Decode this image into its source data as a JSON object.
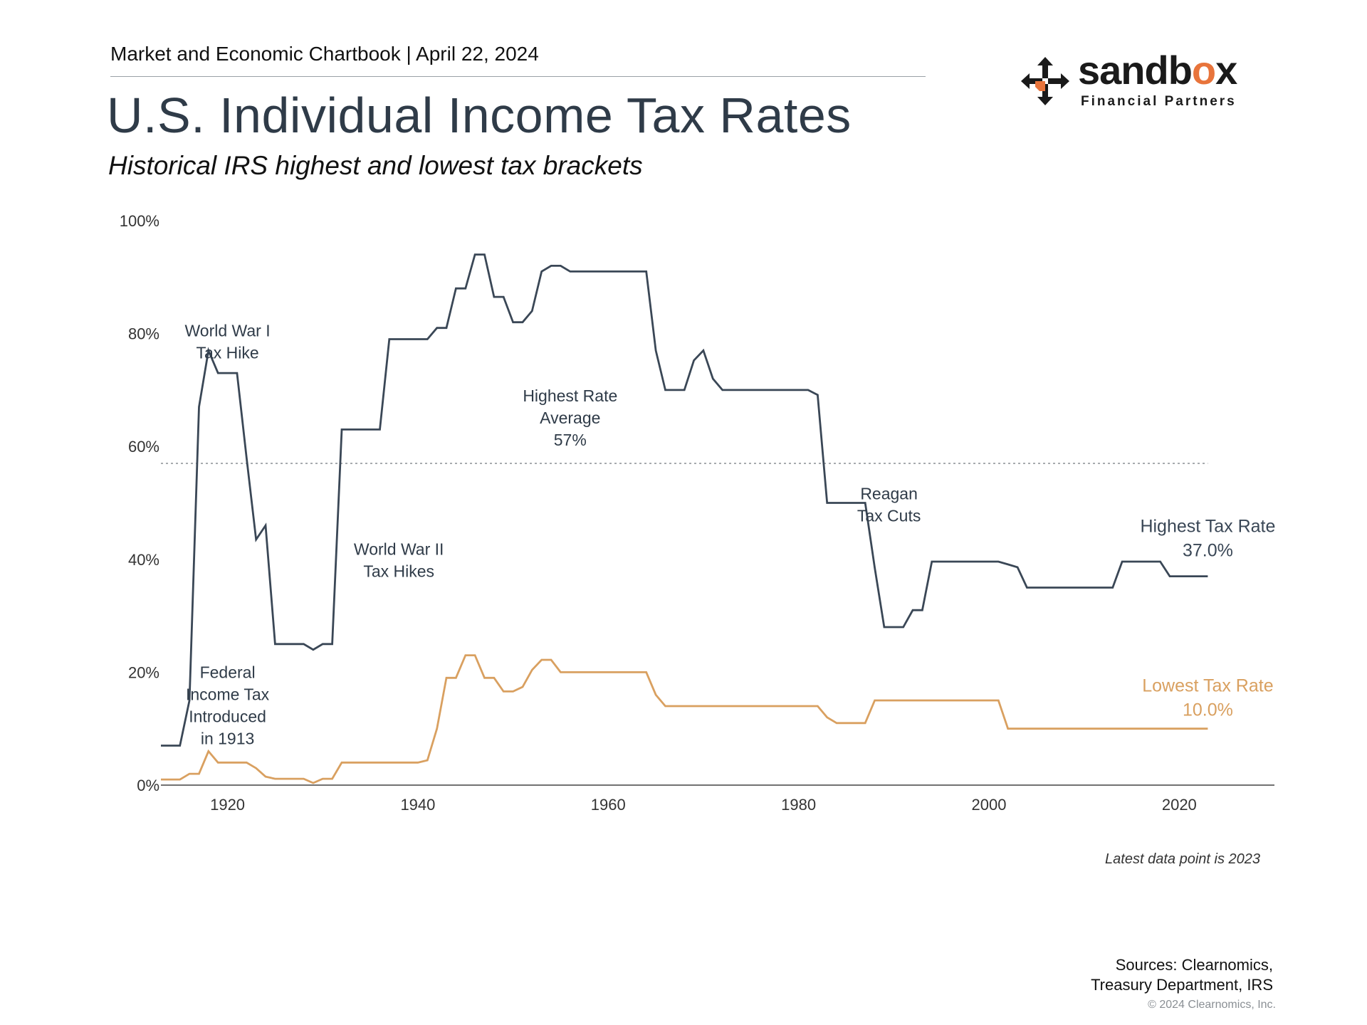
{
  "header": {
    "publication": "Market and Economic Chartbook | April 22, 2024",
    "title": "U.S. Individual Income Tax Rates",
    "subtitle": "Historical IRS highest and lowest tax brackets"
  },
  "logo": {
    "word_main": "sandb",
    "word_accent": "o",
    "word_end": "x",
    "tagline": "Financial Partners",
    "icon": "arrows-cross-icon"
  },
  "footer": {
    "note": "Latest data point is 2023",
    "sources_line1": "Sources: Clearnomics,",
    "sources_line2": "Treasury Department, IRS",
    "copyright": "© 2024 Clearnomics, Inc."
  },
  "colors": {
    "highest": "#3a4756",
    "lowest": "#d9a060",
    "axis": "#444444",
    "average_line": "#8a8f94",
    "text": "#2f3b48",
    "accent": "#e8743b"
  },
  "chart_data": {
    "type": "line",
    "title": "U.S. Individual Income Tax Rates",
    "subtitle": "Historical IRS highest and lowest tax brackets",
    "xlabel": "",
    "ylabel": "",
    "xlim": [
      1913,
      2030
    ],
    "ylim": [
      0,
      100
    ],
    "x_ticks": [
      1920,
      1940,
      1960,
      1980,
      2000,
      2020
    ],
    "y_ticks": [
      0,
      20,
      40,
      60,
      80,
      100
    ],
    "y_tick_labels": [
      "0%",
      "20%",
      "40%",
      "60%",
      "80%",
      "100%"
    ],
    "grid": false,
    "average_line": {
      "value": 57,
      "style": "dotted"
    },
    "series": [
      {
        "name": "Highest Tax Rate",
        "end_label": "37.0%",
        "points": [
          [
            1913,
            7
          ],
          [
            1915,
            7
          ],
          [
            1916,
            15
          ],
          [
            1917,
            67
          ],
          [
            1918,
            77
          ],
          [
            1919,
            73
          ],
          [
            1921,
            73
          ],
          [
            1922,
            58
          ],
          [
            1923,
            43.5
          ],
          [
            1924,
            46
          ],
          [
            1925,
            25
          ],
          [
            1928,
            25
          ],
          [
            1929,
            24
          ],
          [
            1930,
            25
          ],
          [
            1931,
            25
          ],
          [
            1932,
            63
          ],
          [
            1936,
            63
          ],
          [
            1937,
            79
          ],
          [
            1941,
            79
          ],
          [
            1942,
            81
          ],
          [
            1943,
            81
          ],
          [
            1944,
            88
          ],
          [
            1945,
            88
          ],
          [
            1946,
            94
          ],
          [
            1947,
            94
          ],
          [
            1948,
            86.5
          ],
          [
            1949,
            86.5
          ],
          [
            1950,
            82
          ],
          [
            1951,
            82
          ],
          [
            1952,
            84
          ],
          [
            1953,
            91
          ],
          [
            1954,
            92
          ],
          [
            1955,
            92
          ],
          [
            1956,
            91
          ],
          [
            1964,
            91
          ],
          [
            1965,
            77
          ],
          [
            1966,
            70
          ],
          [
            1968,
            70
          ],
          [
            1969,
            75.25
          ],
          [
            1970,
            77
          ],
          [
            1971,
            72
          ],
          [
            1972,
            70
          ],
          [
            1981,
            70
          ],
          [
            1982,
            69.13
          ],
          [
            1983,
            50
          ],
          [
            1987,
            50
          ],
          [
            1988,
            38.5
          ],
          [
            1989,
            28
          ],
          [
            1991,
            28
          ],
          [
            1992,
            31
          ],
          [
            1993,
            31
          ],
          [
            1994,
            39.6
          ],
          [
            2001,
            39.6
          ],
          [
            2002,
            39.1
          ],
          [
            2003,
            38.6
          ],
          [
            2004,
            35
          ],
          [
            2013,
            35
          ],
          [
            2014,
            39.6
          ],
          [
            2018,
            39.6
          ],
          [
            2019,
            37
          ],
          [
            2023,
            37
          ]
        ]
      },
      {
        "name": "Lowest Tax Rate",
        "end_label": "10.0%",
        "points": [
          [
            1913,
            1
          ],
          [
            1915,
            1
          ],
          [
            1916,
            2
          ],
          [
            1917,
            2
          ],
          [
            1918,
            6
          ],
          [
            1919,
            4
          ],
          [
            1922,
            4
          ],
          [
            1923,
            3
          ],
          [
            1924,
            1.5
          ],
          [
            1925,
            1.125
          ],
          [
            1928,
            1.125
          ],
          [
            1929,
            0.375
          ],
          [
            1930,
            1.125
          ],
          [
            1931,
            1.125
          ],
          [
            1932,
            4
          ],
          [
            1940,
            4
          ],
          [
            1941,
            4.4
          ],
          [
            1942,
            10
          ],
          [
            1943,
            19
          ],
          [
            1944,
            19
          ],
          [
            1945,
            23
          ],
          [
            1946,
            23
          ],
          [
            1947,
            19
          ],
          [
            1948,
            19
          ],
          [
            1949,
            16.6
          ],
          [
            1950,
            16.6
          ],
          [
            1951,
            17.4
          ],
          [
            1952,
            20.4
          ],
          [
            1953,
            22.2
          ],
          [
            1954,
            22.2
          ],
          [
            1955,
            20
          ],
          [
            1964,
            20
          ],
          [
            1965,
            16
          ],
          [
            1966,
            14
          ],
          [
            1982,
            14
          ],
          [
            1983,
            12
          ],
          [
            1984,
            11
          ],
          [
            1987,
            11
          ],
          [
            1988,
            15
          ],
          [
            2001,
            15
          ],
          [
            2002,
            10
          ],
          [
            2023,
            10
          ]
        ]
      }
    ],
    "annotations": [
      {
        "id": "ww1",
        "lines": [
          "World War I",
          "Tax Hike"
        ],
        "x": 1920,
        "y": 79.5
      },
      {
        "id": "avg",
        "lines": [
          "Highest Rate",
          "Average",
          "57%"
        ],
        "x": 1956,
        "y": 68
      },
      {
        "id": "ww2",
        "lines": [
          "World War II",
          "Tax Hikes"
        ],
        "x": 1938,
        "y": 40.8
      },
      {
        "id": "reagan",
        "lines": [
          "Reagan",
          "Tax Cuts"
        ],
        "x": 1989.5,
        "y": 50.6
      },
      {
        "id": "fed",
        "lines": [
          "Federal",
          "Income Tax",
          "Introduced",
          "in 1913"
        ],
        "x": 1920,
        "y": 19
      }
    ]
  }
}
